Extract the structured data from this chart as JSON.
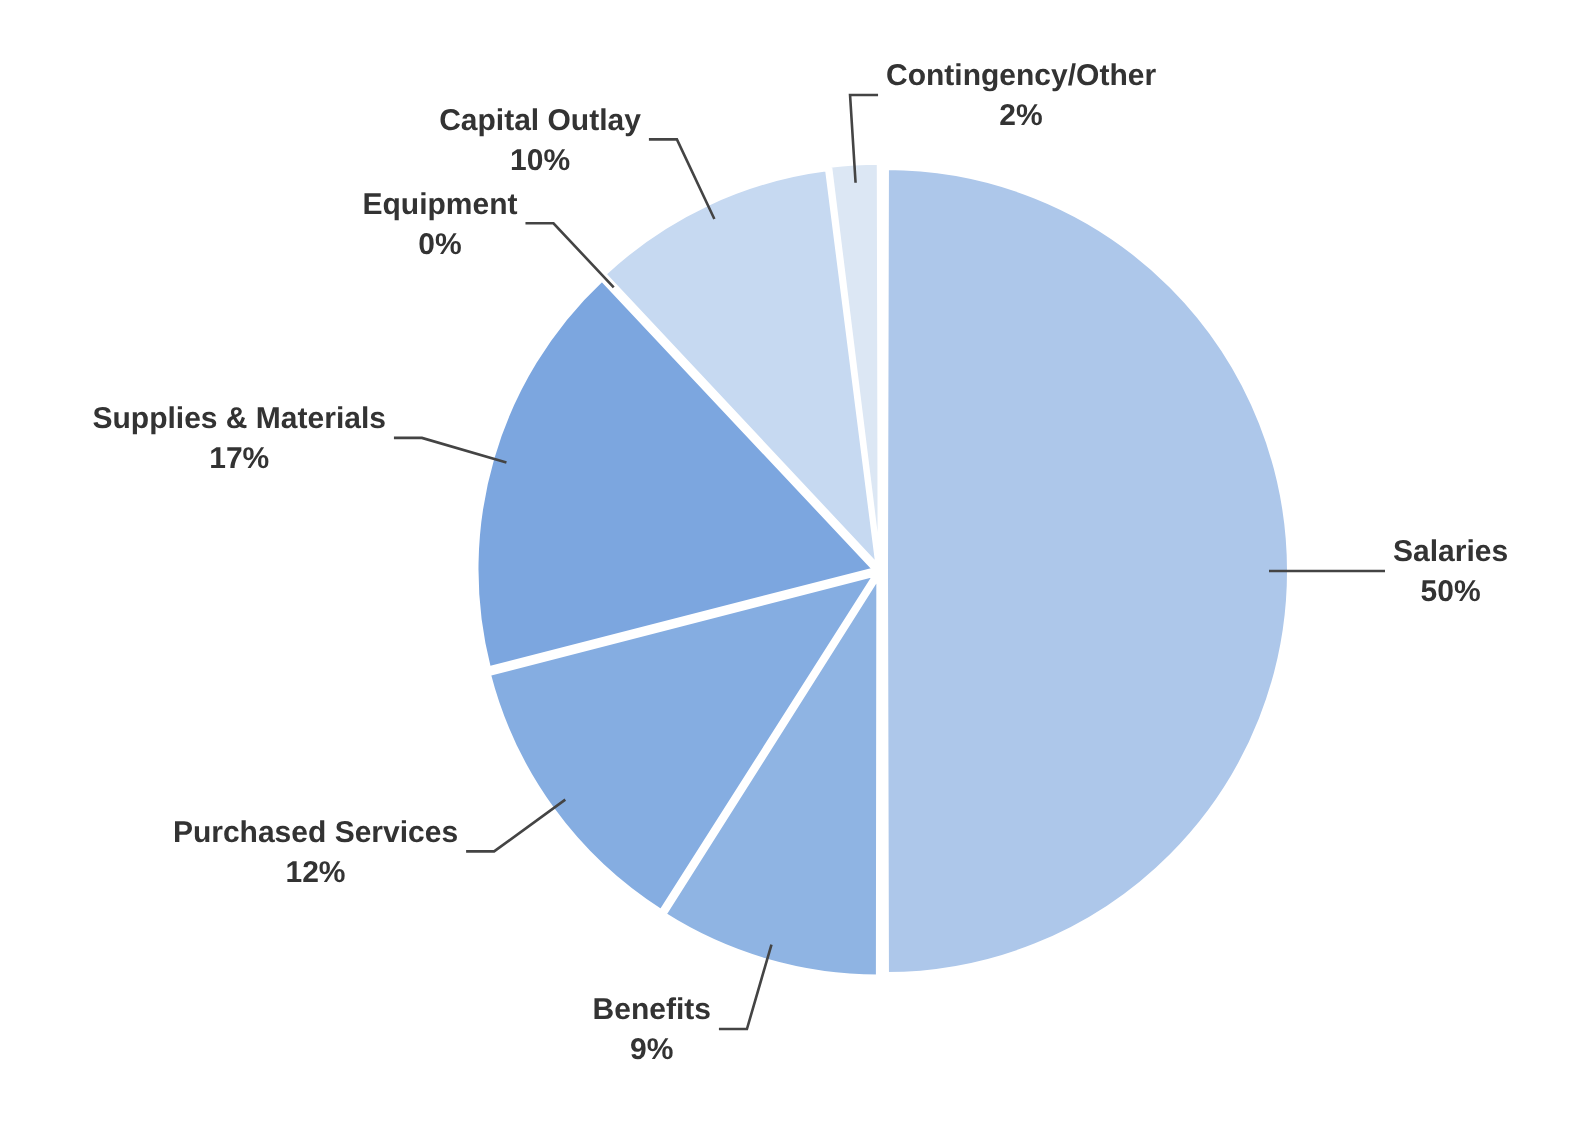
{
  "chart_data": {
    "type": "pie",
    "categories": [
      "Salaries",
      "Benefits",
      "Purchased Services",
      "Supplies & Materials",
      "Equipment",
      "Capital Outlay",
      "Contingency/Other"
    ],
    "values": [
      50,
      9,
      12,
      17,
      0,
      10,
      2
    ],
    "colors": [
      "#adc7ea",
      "#8fb4e3",
      "#85ade1",
      "#7ca6df",
      "#7ca6df",
      "#c6d9f1",
      "#dce7f4"
    ],
    "value_labels": [
      "50%",
      "9%",
      "12%",
      "17%",
      "0%",
      "10%",
      "2%"
    ],
    "legend": false
  }
}
